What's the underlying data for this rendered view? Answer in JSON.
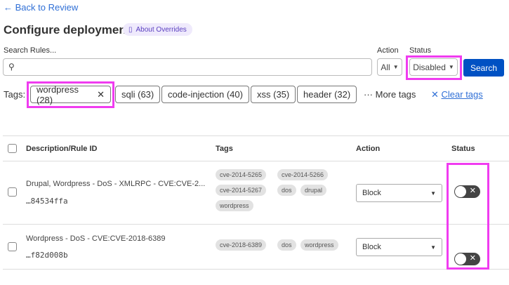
{
  "nav": {
    "back_label": "← Back to Review"
  },
  "header": {
    "title": "Configure deployment",
    "about_label": "About Overrides",
    "about_icon": "book-icon"
  },
  "search": {
    "label": "Search Rules...",
    "value": "",
    "placeholder": ""
  },
  "filters": {
    "action_label": "Action",
    "action_value": "All",
    "status_label": "Status",
    "status_value": "Disabled",
    "search_button": "Search"
  },
  "tags": {
    "label": "Tags:",
    "items": [
      {
        "label": "wordpress (28)",
        "selected": true
      },
      {
        "label": "sqli (63)"
      },
      {
        "label": "code-injection (40)"
      },
      {
        "label": "xss (35)"
      },
      {
        "label": "header (32)"
      }
    ],
    "more_label": "More tags",
    "clear_label": "Clear tags"
  },
  "table": {
    "headers": [
      "Description/Rule ID",
      "Tags",
      "Action",
      "Status"
    ],
    "rows": [
      {
        "description": "Drupal, Wordpress - DoS - XMLRPC - CVE:CVE-2...",
        "rule_id": "…84534ffa",
        "tags": [
          "cve-2014-5265",
          "cve-2014-5266",
          "cve-2014-5267",
          "dos",
          "drupal",
          "wordpress"
        ],
        "action": "Block",
        "enabled": false
      },
      {
        "description": "Wordpress - DoS - CVE:CVE-2018-6389",
        "rule_id": "…f82d008b",
        "tags": [
          "cve-2018-6389",
          "dos",
          "wordpress"
        ],
        "action": "Block",
        "enabled": false
      }
    ]
  },
  "colors": {
    "accent": "#0051c3",
    "link": "#2f6fd6",
    "highlight": "#f03cf0"
  }
}
